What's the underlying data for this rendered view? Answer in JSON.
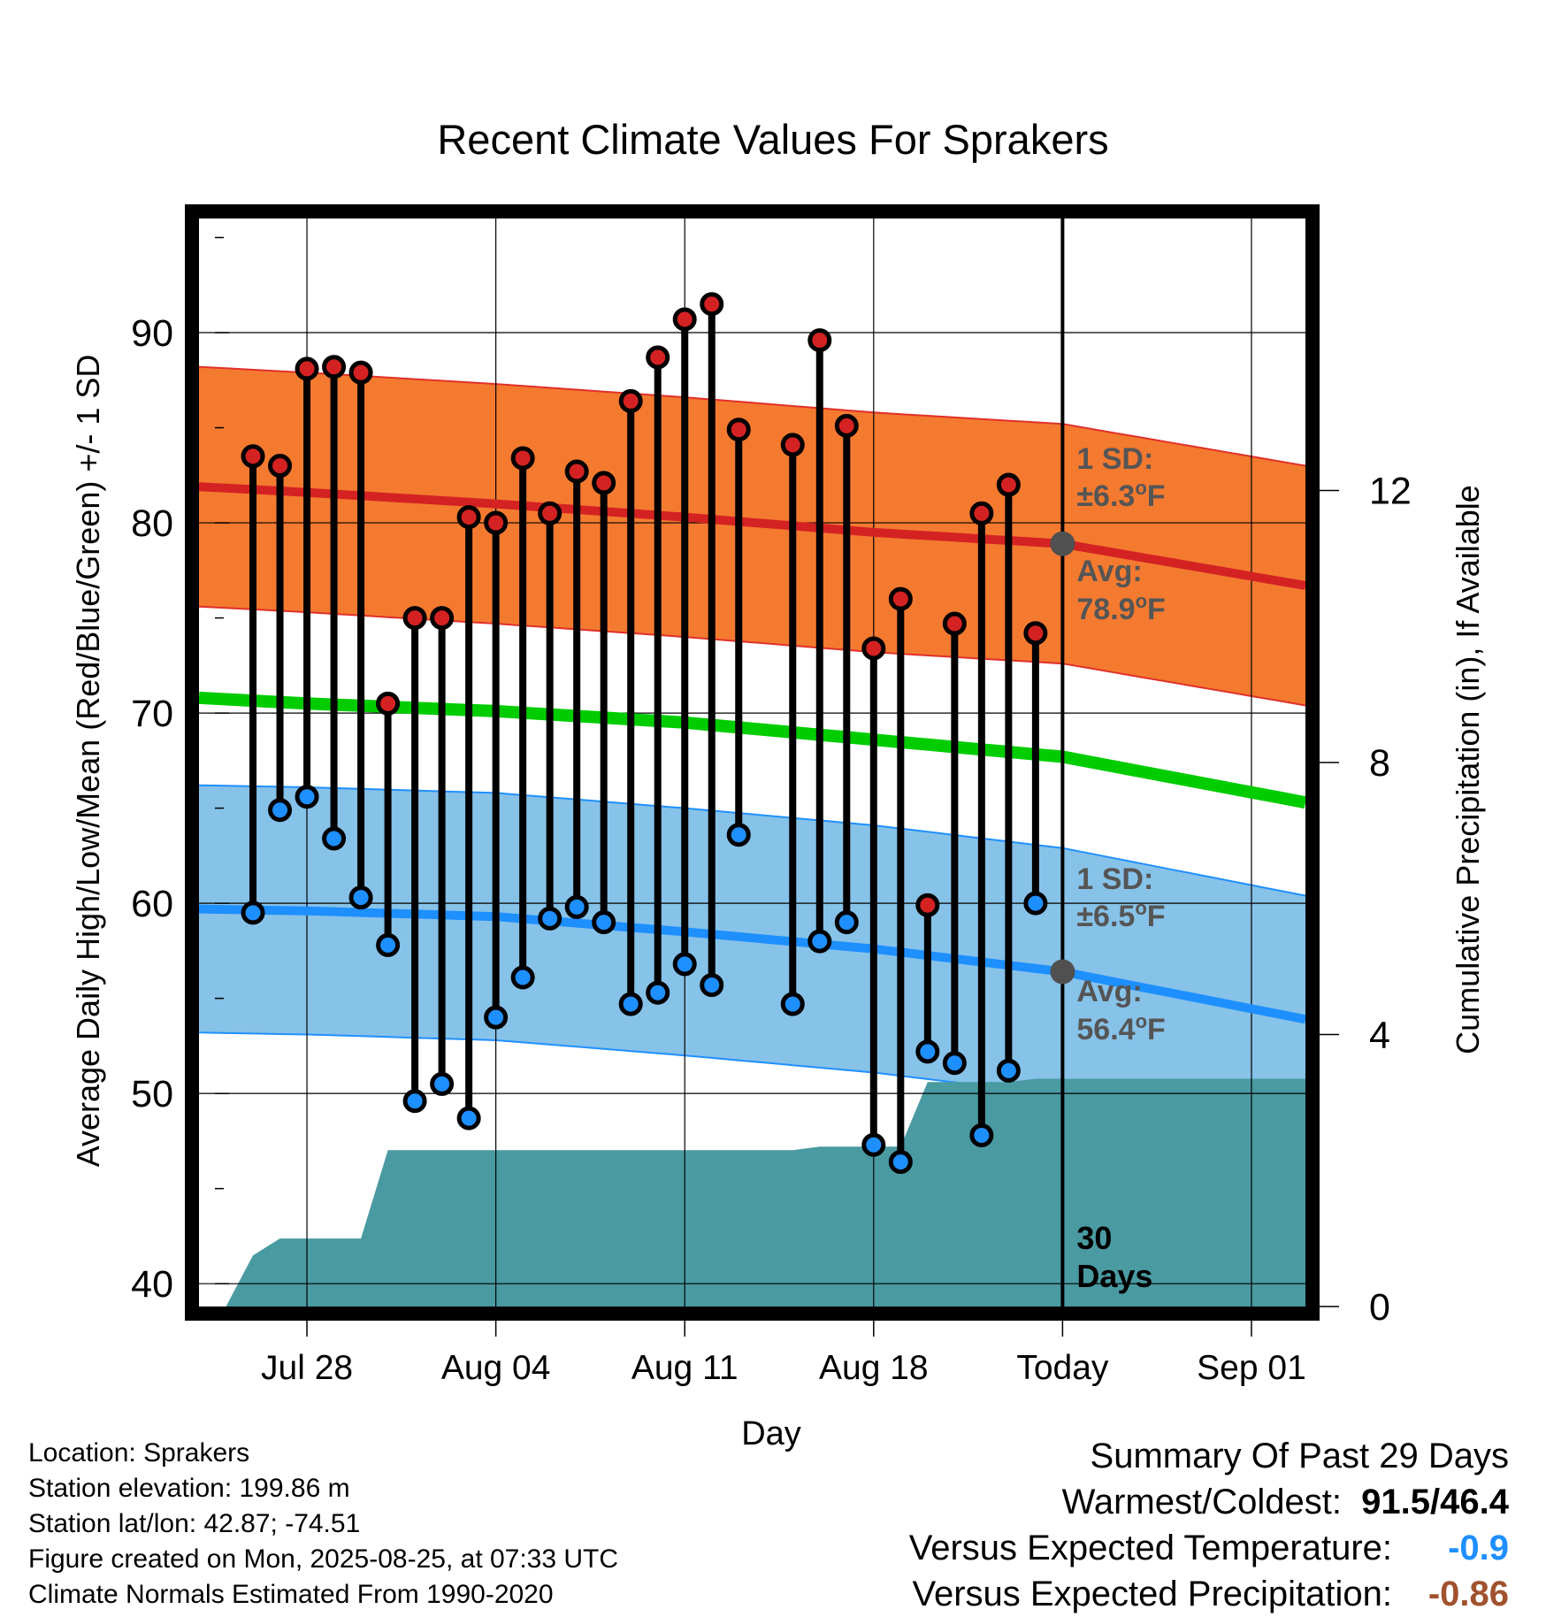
{
  "chart_data": {
    "type": "line",
    "title": "Recent Climate Values For Sprakers",
    "xlabel": "Day",
    "ylabel": "Average Daily High/Low/Mean (Red/Blue/Green) +/- 1 SD",
    "y2label": "Cumulative Precipitation (in), If Available",
    "ylim": [
      38.8,
      96
    ],
    "y2lim": [
      0,
      16
    ],
    "yticks": [
      "40",
      "50",
      "60",
      "70",
      "80",
      "90"
    ],
    "y2ticks": [
      "0",
      "4",
      "8",
      "12"
    ],
    "xlim": [
      "2025-07-24",
      "2025-09-03"
    ],
    "x_ticks": [
      {
        "date": "2025-07-28",
        "label": "Jul 28"
      },
      {
        "date": "2025-08-04",
        "label": "Aug 04"
      },
      {
        "date": "2025-08-11",
        "label": "Aug 11"
      },
      {
        "date": "2025-08-18",
        "label": "Aug 18"
      },
      {
        "date": "2025-08-25",
        "label": "Today"
      },
      {
        "date": "2025-09-01",
        "label": "Sep 01"
      }
    ],
    "grid": true,
    "colors": {
      "high_band": "#f47a30",
      "high_line": "#d42222",
      "high_edge": "#e0302a",
      "low_band": "#87c2e8",
      "low_line": "#1e8fff",
      "low_edge": "#2090ff",
      "mean_line": "#00cc00",
      "precip": "#4a9aa2",
      "high_dot": "#d42222",
      "low_dot": "#1e8fff",
      "today_dot": "#505050",
      "annotation": "#555555",
      "temp_departure": "#1e8fff",
      "precip_departure": "#a0522d"
    },
    "normals": {
      "dates": [
        "2025-07-24",
        "2025-07-28",
        "2025-08-04",
        "2025-08-11",
        "2025-08-18",
        "2025-08-25",
        "2025-09-03"
      ],
      "high_mean": [
        81.9,
        81.6,
        81.0,
        80.3,
        79.5,
        78.9,
        76.7
      ],
      "low_mean": [
        59.7,
        59.6,
        59.3,
        58.5,
        57.6,
        56.4,
        53.9
      ],
      "mean": [
        70.8,
        70.5,
        70.1,
        69.5,
        68.6,
        67.7,
        65.3
      ],
      "high_sd": 6.3,
      "low_sd": 6.5
    },
    "series": [
      {
        "dates": [
          "2025-07-26",
          "2025-07-27",
          "2025-07-28",
          "2025-07-29",
          "2025-07-30",
          "2025-07-31",
          "2025-08-01",
          "2025-08-02",
          "2025-08-03",
          "2025-08-04",
          "2025-08-05",
          "2025-08-06",
          "2025-08-07",
          "2025-08-08",
          "2025-08-09",
          "2025-08-10",
          "2025-08-11",
          "2025-08-12",
          "2025-08-13",
          "2025-08-15",
          "2025-08-16",
          "2025-08-17",
          "2025-08-18",
          "2025-08-19",
          "2025-08-20",
          "2025-08-21",
          "2025-08-22",
          "2025-08-23",
          "2025-08-24"
        ],
        "high": [
          83.5,
          83.0,
          88.1,
          88.2,
          87.9,
          70.5,
          75.0,
          75.0,
          80.3,
          80.0,
          83.4,
          80.5,
          82.7,
          82.1,
          86.4,
          88.7,
          90.7,
          91.5,
          84.9,
          84.1,
          89.6,
          85.1,
          73.4,
          76.0,
          59.9,
          74.7,
          80.5,
          82.0,
          74.2
        ],
        "low": [
          59.5,
          64.9,
          65.6,
          63.4,
          60.3,
          57.8,
          49.6,
          50.5,
          48.7,
          54.0,
          56.1,
          59.2,
          59.8,
          59.0,
          54.7,
          55.3,
          56.8,
          55.7,
          63.6,
          54.7,
          58.0,
          59.0,
          47.3,
          46.4,
          52.2,
          51.6,
          47.8,
          51.2,
          60.0
        ]
      }
    ],
    "precipitation": {
      "dates": [
        "2025-07-25",
        "2025-07-26",
        "2025-07-27",
        "2025-07-28",
        "2025-07-30",
        "2025-07-31",
        "2025-08-15",
        "2025-08-16",
        "2025-08-19",
        "2025-08-20",
        "2025-08-23",
        "2025-08-24",
        "2025-09-03"
      ],
      "values": [
        0.0,
        0.75,
        1.0,
        1.0,
        1.0,
        2.3,
        2.3,
        2.35,
        2.35,
        3.3,
        3.3,
        3.35,
        3.35
      ]
    },
    "annotations": {
      "high_sd": "1 SD:",
      "high_sd_value": "±6.3",
      "high_avg": "Avg:",
      "high_avg_value": "78.9",
      "low_sd": "1 SD:",
      "low_sd_value": "±6.5",
      "low_avg": "Avg:",
      "low_avg_value": "56.4",
      "degree_symbol": "o",
      "unit": "F",
      "days_number": "30",
      "days_word": "Days"
    }
  },
  "info": {
    "location": "Location: Sprakers",
    "elevation": "Station elevation: 199.86 m",
    "latlon": "Station lat/lon: 42.87; -74.51",
    "created": "Figure created on Mon, 2025-08-25, at 07:33 UTC",
    "normals": "Climate Normals Estimated From 1990-2020"
  },
  "summary": {
    "heading": "Summary Of Past 29 Days",
    "warmest_label": "Warmest/Coldest:",
    "warmest_value": "91.5/46.4",
    "temp_label": "Versus Expected Temperature:",
    "temp_value": "-0.9",
    "precip_label": "Versus Expected Precipitation:",
    "precip_value": "-0.86"
  }
}
